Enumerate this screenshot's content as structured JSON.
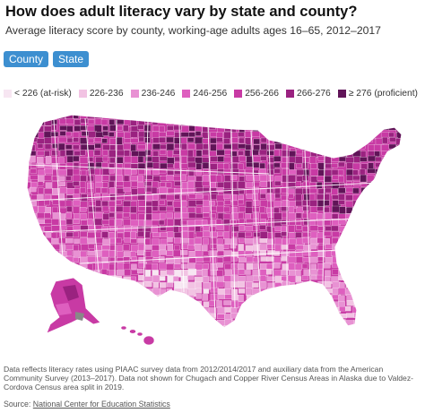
{
  "header": {
    "title": "How does adult literacy vary by state and county?",
    "subtitle": "Average literacy score by county, working-age adults ages 16–65, 2012–2017"
  },
  "toggles": {
    "county_label": "County",
    "state_label": "State"
  },
  "legend": {
    "items": [
      {
        "label": "< 226 (at-risk)",
        "color": "#f7e6f2"
      },
      {
        "label": "226-236",
        "color": "#f2c3e3"
      },
      {
        "label": "236-246",
        "color": "#e892d3"
      },
      {
        "label": "246-256",
        "color": "#de5fbf"
      },
      {
        "label": "256-266",
        "color": "#c83aa4"
      },
      {
        "label": "266-276",
        "color": "#9a2280"
      },
      {
        "label": "≥ 276 (proficient)",
        "color": "#601458"
      }
    ]
  },
  "map": {
    "regions": [
      "Contiguous United States",
      "Alaska",
      "Hawaii"
    ]
  },
  "footer": {
    "notes": "Data reflects literacy rates using PIAAC survey data from 2012/2014/2017 and auxiliary data from the American Community Survey (2013–2017). Data not shown for Chugach and Copper River Census Areas in Alaska due to Valdez-Cordova Census area split in 2019.",
    "source_prefix": "Source:",
    "source_link": "National Center for Education Statistics"
  }
}
